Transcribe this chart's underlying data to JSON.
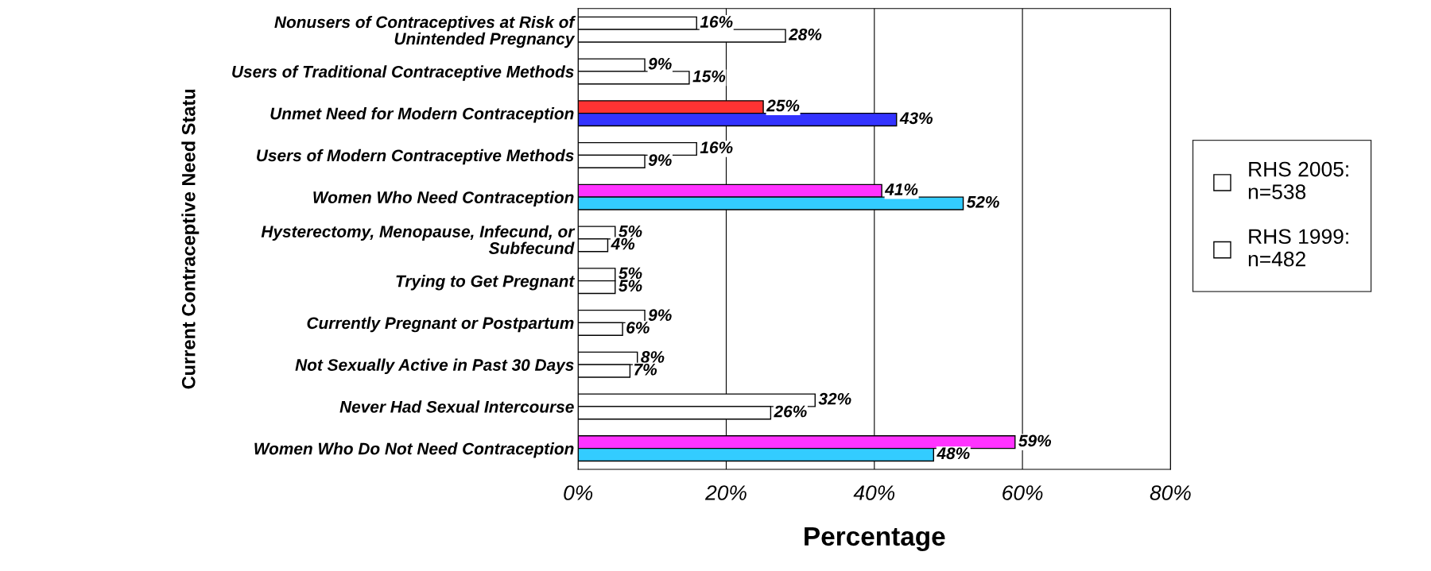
{
  "chart_data": {
    "type": "bar",
    "orientation": "horizontal",
    "xlabel": "Percentage",
    "ylabel": "Current Contraceptive Need Statu",
    "categories": [
      "Nonusers of Contraceptives at Risk of\nUnintended Pregnancy",
      "Users of Traditional Contraceptive Methods",
      "Unmet Need for Modern Contraception",
      "Users of Modern Contraceptive Methods",
      "Women Who Need Contraception",
      "Hysterectomy, Menopause, Infecund, or\nSubfecund",
      "Trying to Get Pregnant",
      "Currently Pregnant or Postpartum",
      "Not Sexually Active in Past 30 Days",
      "Never Had Sexual Intercourse",
      "Women Who Do Not Need Contraception"
    ],
    "series": [
      {
        "name": "RHS 2005:\nn=538",
        "color": "#ffffff",
        "colors": [
          "#ffffff",
          "#ffffff",
          "#ff3333",
          "#ffffff",
          "#ff33ff",
          "#ffffff",
          "#ffffff",
          "#ffffff",
          "#ffffff",
          "#ffffff",
          "#ff33ff"
        ],
        "values": [
          16,
          9,
          25,
          16,
          41,
          5,
          5,
          9,
          8,
          32,
          59
        ],
        "value_labels": [
          "16%",
          "9%",
          "25%",
          "16%",
          "41%",
          "5%",
          "5%",
          "9%",
          "8%",
          "32%",
          "59%"
        ]
      },
      {
        "name": "RHS 1999:\nn=482",
        "color": "#ffffff",
        "colors": [
          "#ffffff",
          "#ffffff",
          "#3333ff",
          "#ffffff",
          "#33ccff",
          "#ffffff",
          "#ffffff",
          "#ffffff",
          "#ffffff",
          "#ffffff",
          "#33ccff"
        ],
        "values": [
          28,
          15,
          43,
          9,
          52,
          4,
          5,
          6,
          7,
          26,
          48
        ],
        "value_labels": [
          "28%",
          "15%",
          "43%",
          "9%",
          "52%",
          "4%",
          "5%",
          "6%",
          "7%",
          "26%",
          "48%"
        ]
      }
    ],
    "xlim": [
      0,
      80
    ],
    "xticks": [
      {
        "value": 0,
        "label": "0%"
      },
      {
        "value": 20,
        "label": "20%"
      },
      {
        "value": 40,
        "label": "40%"
      },
      {
        "value": 60,
        "label": "60%"
      },
      {
        "value": 80,
        "label": "80%"
      }
    ],
    "grid": "x",
    "legend": "right"
  }
}
